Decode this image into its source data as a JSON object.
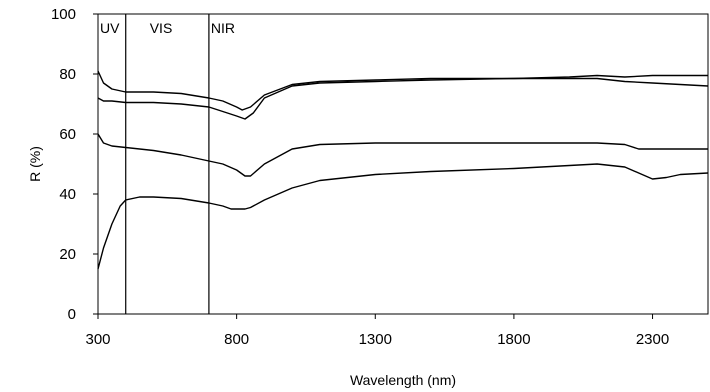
{
  "chart_data": {
    "type": "line",
    "xlabel": "Wavelength (nm)",
    "ylabel": "R (%)",
    "xlim": [
      300,
      2500
    ],
    "ylim": [
      0,
      100
    ],
    "xticks": [
      300,
      800,
      1300,
      1800,
      2300
    ],
    "yticks": [
      0,
      20,
      40,
      60,
      80,
      100
    ],
    "grid": false,
    "legend": "none",
    "regions": [
      {
        "label": "UV",
        "boundary": 300
      },
      {
        "label": "VIS",
        "boundary": 400
      },
      {
        "label": "NIR",
        "boundary": 700
      }
    ],
    "series": [
      {
        "x": [
          300,
          320,
          350,
          400,
          500,
          600,
          700,
          750,
          800,
          820,
          850,
          900,
          1000,
          1100,
          1300,
          1500,
          1800,
          2000,
          2100,
          2200,
          2300,
          2400,
          2500
        ],
        "values": [
          81,
          77,
          75,
          74,
          74,
          73.5,
          72,
          71,
          69,
          68,
          69,
          73,
          76.5,
          77.5,
          78,
          78.5,
          78.5,
          79,
          79.5,
          79,
          79.5,
          79.5,
          79.5
        ]
      },
      {
        "x": [
          300,
          320,
          350,
          400,
          500,
          600,
          700,
          750,
          800,
          830,
          860,
          900,
          1000,
          1100,
          1300,
          1500,
          1800,
          2000,
          2100,
          2200,
          2300,
          2400,
          2500
        ],
        "values": [
          72,
          71,
          71,
          70.5,
          70.5,
          70,
          69,
          67.5,
          66,
          65,
          67,
          72,
          76,
          77,
          77.5,
          78,
          78.5,
          78.5,
          78.5,
          77.5,
          77,
          76.5,
          76
        ]
      },
      {
        "x": [
          300,
          320,
          350,
          400,
          500,
          600,
          700,
          750,
          800,
          830,
          850,
          900,
          1000,
          1100,
          1300,
          1500,
          1800,
          2000,
          2100,
          2200,
          2250,
          2300,
          2400,
          2500
        ],
        "values": [
          60,
          57,
          56,
          55.5,
          54.5,
          53,
          51,
          50,
          48,
          46,
          46,
          50,
          55,
          56.5,
          57,
          57,
          57,
          57,
          57,
          56.5,
          55,
          55,
          55,
          55
        ]
      },
      {
        "x": [
          300,
          320,
          350,
          380,
          400,
          450,
          500,
          600,
          700,
          750,
          780,
          800,
          830,
          850,
          900,
          1000,
          1100,
          1300,
          1500,
          1800,
          2000,
          2100,
          2200,
          2250,
          2300,
          2350,
          2400,
          2500
        ],
        "values": [
          15,
          22,
          30,
          36,
          38,
          39,
          39,
          38.5,
          37,
          36,
          35,
          35,
          35,
          35.5,
          38,
          42,
          44.5,
          46.5,
          47.5,
          48.5,
          49.5,
          50,
          49,
          47,
          45,
          45.5,
          46.5,
          47
        ]
      }
    ]
  }
}
